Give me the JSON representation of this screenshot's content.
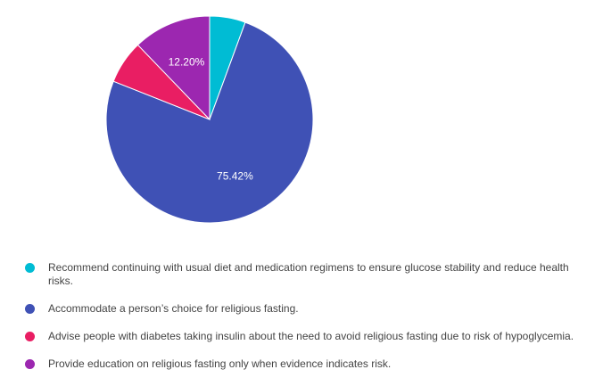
{
  "chart_data": {
    "type": "pie",
    "title": "",
    "legend_position": "bottom",
    "slices": [
      {
        "label": "Recommend continuing with usual diet and medication regimens to ensure glucose stability and reduce health risks.",
        "value": 5.6,
        "color": "#00bcd4",
        "data_label": ""
      },
      {
        "label": "Accommodate a person’s choice for religious fasting.",
        "value": 75.42,
        "color": "#3f51b5",
        "data_label": "75.42%"
      },
      {
        "label": "Advise people with diabetes taking insulin about the need to avoid religious fasting due to risk of hypoglycemia.",
        "value": 6.78,
        "color": "#e91e63",
        "data_label": ""
      },
      {
        "label": "Provide education on religious fasting only when evidence indicates risk.",
        "value": 12.2,
        "color": "#9c27b0",
        "data_label": "12.20%"
      }
    ]
  }
}
